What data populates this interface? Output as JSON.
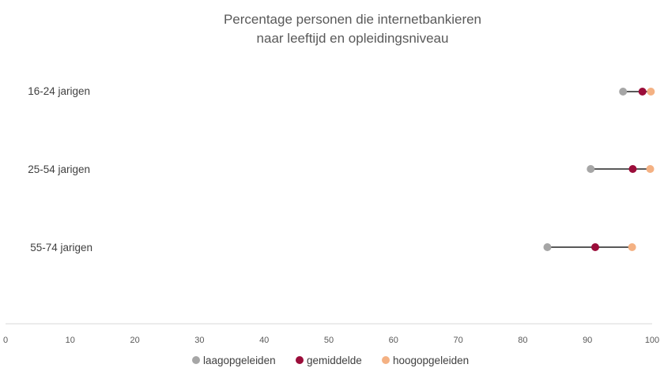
{
  "chart_data": {
    "type": "dot",
    "title": [
      "Percentage personen die internetbankieren",
      "naar leeftijd en opleidingsniveau"
    ],
    "categories": [
      "16-24 jarigen",
      "25-54 jarigen",
      "55-74 jarigen"
    ],
    "series": [
      {
        "name": "laagopgeleiden",
        "color": "#a6a6a6",
        "values": [
          95.5,
          90.5,
          83.8
        ]
      },
      {
        "name": "gemiddelde",
        "color": "#9b0d3a",
        "values": [
          98.5,
          97.0,
          91.2
        ]
      },
      {
        "name": "hoogopgeleiden",
        "color": "#f4b183",
        "values": [
          99.8,
          99.7,
          96.9
        ]
      }
    ],
    "xlim": [
      0,
      100
    ],
    "xticks": [
      0,
      10,
      20,
      30,
      40,
      50,
      60,
      70,
      80,
      90,
      100
    ],
    "grid": false,
    "legend": "bottom",
    "line_color": "#595959",
    "axis_color": "#d9d9d9"
  }
}
